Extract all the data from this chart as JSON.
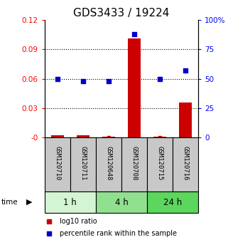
{
  "title": "GDS3433 / 19224",
  "samples": [
    "GSM120710",
    "GSM120711",
    "GSM120648",
    "GSM120708",
    "GSM120715",
    "GSM120716"
  ],
  "log10_ratio": [
    0.002,
    0.002,
    0.001,
    0.101,
    0.001,
    0.036
  ],
  "percentile_rank": [
    50,
    48,
    48,
    88,
    50,
    57
  ],
  "time_groups": [
    {
      "label": "1 h",
      "start": 0,
      "end": 2,
      "color": "#d4f5d4"
    },
    {
      "label": "4 h",
      "start": 2,
      "end": 4,
      "color": "#90e090"
    },
    {
      "label": "24 h",
      "start": 4,
      "end": 6,
      "color": "#5cd65c"
    }
  ],
  "left_ylim": [
    0,
    0.12
  ],
  "right_ylim": [
    0,
    100
  ],
  "left_yticks": [
    0,
    0.03,
    0.06,
    0.09,
    0.12
  ],
  "left_yticklabels": [
    "-0",
    "0.03",
    "0.06",
    "0.09",
    "0.12"
  ],
  "right_yticks": [
    0,
    25,
    50,
    75,
    100
  ],
  "right_yticklabels": [
    "0",
    "25",
    "50",
    "75",
    "100%"
  ],
  "bar_color": "#cc0000",
  "dot_color": "#0000cc",
  "bar_width": 0.5,
  "sample_box_color": "#c8c8c8",
  "legend_bar_label": "log10 ratio",
  "legend_dot_label": "percentile rank within the sample",
  "title_fontsize": 11,
  "tick_fontsize": 7.5,
  "sample_fontsize": 6.5,
  "time_fontsize": 8.5,
  "legend_fontsize": 7
}
